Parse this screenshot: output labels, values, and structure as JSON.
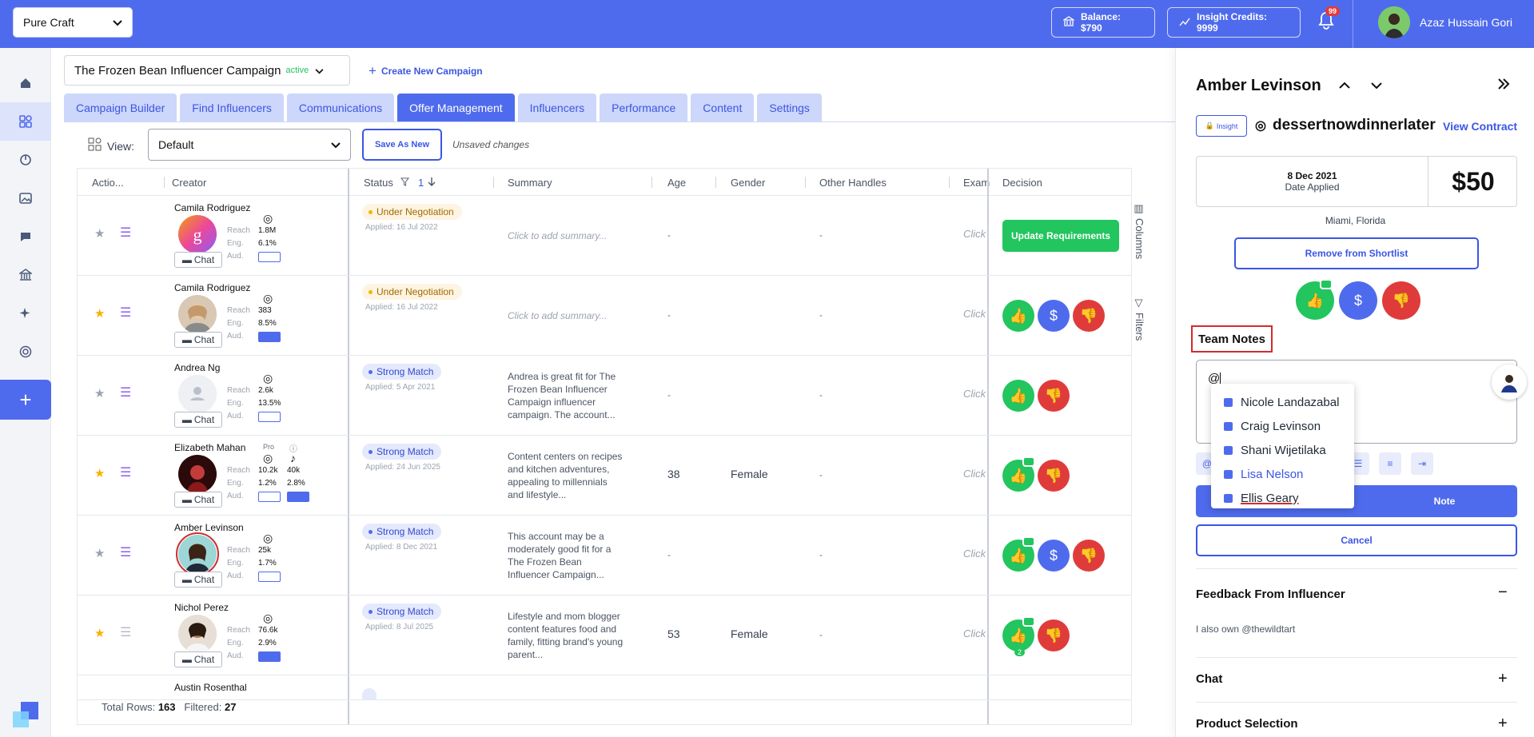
{
  "topbar": {
    "brand": "Pure Craft",
    "balance": "Balance: $790",
    "credits": "Insight Credits: 9999",
    "notif_count": "99",
    "user_name": "Azaz Hussain Gori"
  },
  "campaign": {
    "name": "The Frozen Bean Influencer Campaign",
    "status": "active",
    "create_new": "Create New Campaign"
  },
  "tabs": [
    "Campaign Builder",
    "Find Influencers",
    "Communications",
    "Offer Management",
    "Influencers",
    "Performance",
    "Content",
    "Settings"
  ],
  "active_tab": "Offer Management",
  "toolbar": {
    "view_label": "View:",
    "view_value": "Default",
    "save_as_new": "Save As New",
    "unsaved": "Unsaved changes"
  },
  "grid": {
    "headers": {
      "actions": "Actio...",
      "creator": "Creator",
      "status": "Status",
      "sort_count": "1",
      "summary": "Summary",
      "age": "Age",
      "gender": "Gender",
      "other_handles": "Other Handles",
      "exam": "Exam",
      "decision": "Decision"
    },
    "metric_labels": {
      "reach": "Reach",
      "eng": "Eng.",
      "aud": "Aud."
    },
    "chat_label": "Chat",
    "rows": [
      {
        "name": "Camila Rodriguez",
        "reach": "1.8M",
        "eng": "6.1%",
        "status": "Under Negotiation",
        "applied": "Applied: 16 Jul 2022",
        "summary": "Click to add summary...",
        "age": "-",
        "gender": "",
        "other": "-",
        "exam": "Click",
        "decision": "Update Requirements"
      },
      {
        "name": "Camila Rodriguez",
        "reach": "383",
        "eng": "8.5%",
        "status": "Under Negotiation",
        "applied": "Applied: 16 Jul 2022",
        "summary": "Click to add summary...",
        "age": "-",
        "gender": "",
        "other": "-",
        "exam": "Click"
      },
      {
        "name": "Andrea Ng",
        "reach": "2.6k",
        "eng": "13.5%",
        "status": "Strong Match",
        "applied": "Applied: 5 Apr 2021",
        "summary": "Andrea is great fit for The Frozen Bean Influencer Campaign influencer campaign. The account...",
        "age": "-",
        "gender": "",
        "other": "-",
        "exam": "Click"
      },
      {
        "name": "Elizabeth Mahan",
        "pro": "Pro",
        "reach": "10.2k",
        "eng": "1.2%",
        "reach2": "40k",
        "eng2": "2.8%",
        "status": "Strong Match",
        "applied": "Applied: 24 Jun 2025",
        "summary": "Content centers on recipes and kitchen adventures, appealing to millennials and lifestyle...",
        "age": "38",
        "gender": "Female",
        "other": "-",
        "exam": "Click"
      },
      {
        "name": "Amber Levinson",
        "reach": "25k",
        "eng": "1.7%",
        "status": "Strong Match",
        "applied": "Applied: 8 Dec 2021",
        "summary": "This account may be a moderately good fit for a The Frozen Bean Influencer Campaign...",
        "age": "-",
        "gender": "",
        "other": "-",
        "exam": "Click"
      },
      {
        "name": "Nichol Perez",
        "reach": "76.6k",
        "eng": "2.9%",
        "status": "Strong Match",
        "applied": "Applied: 8 Jul 2025",
        "summary": "Lifestyle and mom blogger content features food and family, fitting brand's young parent...",
        "age": "53",
        "gender": "Female",
        "other": "-",
        "exam": "Click",
        "like_count": "2"
      },
      {
        "name": "Austin Rosenthal"
      }
    ],
    "side_columns": "Columns",
    "side_filters": "Filters",
    "footer": {
      "total_label": "Total Rows:",
      "total": "163",
      "filtered_label": "Filtered:",
      "filtered": "27"
    }
  },
  "panel": {
    "name": "Amber Levinson",
    "insight": "Insight",
    "handle": "dessertnowdinnerlater",
    "view_contract": "View Contract",
    "date": "8 Dec 2021",
    "date_label": "Date Applied",
    "price": "$50",
    "location": "Miami, Florida",
    "remove": "Remove from Shortlist",
    "team_notes": "Team Notes",
    "note_text": "@",
    "mentions": [
      "Nicole Landazabal",
      "Craig Levinson",
      "Shani Wijetilaka",
      "Lisa Nelson",
      "Ellis Geary"
    ],
    "add_note": "Note",
    "cancel": "Cancel",
    "feedback_title": "Feedback From Influencer",
    "feedback_text": "I also own @thewildtart",
    "chat_title": "Chat",
    "product_title": "Product Selection"
  },
  "colors": {
    "primary": "#4f6bed",
    "green": "#22c55e",
    "red": "#e03b3b",
    "highlight": "#d02d2d"
  }
}
